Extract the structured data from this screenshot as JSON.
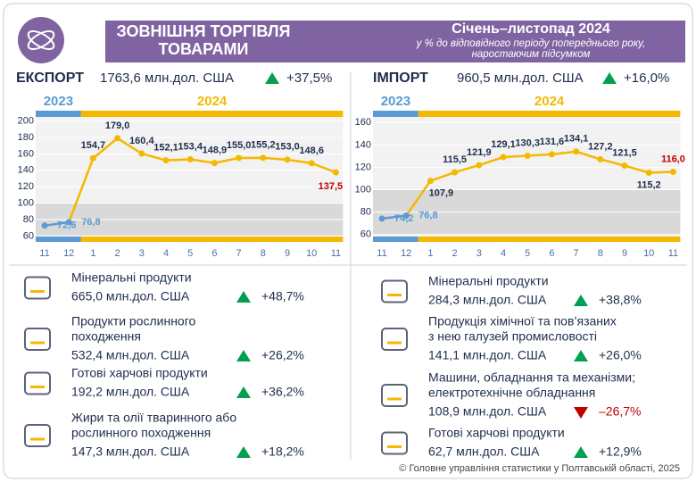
{
  "header": {
    "title_lines": [
      "ЗОВНІШНЯ ТОРГІВЛЯ",
      "ТОВАРАМИ"
    ],
    "period": "Січень–листопад 2024",
    "note_lines": [
      "у % до відповідного періоду попереднього року,",
      "наростаючим підсумком"
    ]
  },
  "panels": [
    {
      "label": "ЕКСПОРТ",
      "amount": "1763,6 млн.дол. США",
      "change": "+37,5%",
      "trend": "up",
      "products": [
        {
          "name_lines": [
            "Мінеральні продукти"
          ],
          "amount": "665,0 млн.дол. США",
          "change": "+48,7%",
          "trend": "up"
        },
        {
          "name_lines": [
            "Продукти рослинного",
            "походження"
          ],
          "amount": "532,4 млн.дол. США",
          "change": "+26,2%",
          "trend": "up"
        },
        {
          "name_lines": [
            "Готові харчові продукти"
          ],
          "amount": "192,2 млн.дол. США",
          "change": "+36,2%",
          "trend": "up"
        },
        {
          "name_lines": [
            "Жири та олії тваринного або",
            "рослинного походження"
          ],
          "amount": "147,3 млн.дол. США",
          "change": "+18,2%",
          "trend": "up"
        }
      ]
    },
    {
      "label": "ІМПОРТ",
      "amount": "960,5 млн.дол. США",
      "change": "+16,0%",
      "trend": "up",
      "products": [
        {
          "name_lines": [
            "Мінеральні продукти"
          ],
          "amount": "284,3 млн.дол. США",
          "change": "+38,8%",
          "trend": "up"
        },
        {
          "name_lines": [
            "Продукція хімічної та пов’язаних",
            "з нею галузей промисловості"
          ],
          "amount": "141,1 млн.дол. США",
          "change": "+26,0%",
          "trend": "up"
        },
        {
          "name_lines": [
            "Машини, обладнання та механізми;",
            "електротехнічне обладнання"
          ],
          "amount": "108,9 млн.дол. США",
          "change": "–26,7%",
          "trend": "down"
        },
        {
          "name_lines": [
            "Готові харчові продукти"
          ],
          "amount": "62,7 млн.дол. США",
          "change": "+12,9%",
          "trend": "up"
        }
      ]
    }
  ],
  "chart_data": [
    {
      "type": "line",
      "categories": [
        "11",
        "12",
        "1",
        "2",
        "3",
        "4",
        "5",
        "6",
        "7",
        "8",
        "9",
        "10",
        "11"
      ],
      "periods": [
        {
          "label": "2023",
          "color": "#5b9bd5",
          "categories": [
            "11",
            "12"
          ]
        },
        {
          "label": "2024",
          "color": "#f5b800",
          "categories": [
            "1",
            "2",
            "3",
            "4",
            "5",
            "6",
            "7",
            "8",
            "9",
            "10",
            "11"
          ]
        }
      ],
      "series": [
        {
          "values": [
            72.6,
            76.8,
            154.7,
            179.0,
            160.4,
            152.1,
            153.4,
            148.9,
            155.0,
            155.2,
            153.0,
            148.6,
            137.5
          ],
          "value_labels": [
            "72,6",
            "76,8",
            "154,7",
            "179,0",
            "160,4",
            "152,1",
            "153,4",
            "148,9",
            "155,0",
            "155,2",
            "153,0",
            "148,6",
            "137,5"
          ],
          "label_colors": [
            "#5b9bd5",
            "#5b9bd5",
            "#1f2d4d",
            "#1f2d4d",
            "#1f2d4d",
            "#1f2d4d",
            "#1f2d4d",
            "#1f2d4d",
            "#1f2d4d",
            "#1f2d4d",
            "#1f2d4d",
            "#1f2d4d",
            "#c00000"
          ]
        }
      ],
      "ylim": [
        55,
        205
      ],
      "yticks": [
        60,
        80,
        100,
        120,
        140,
        160,
        180,
        200
      ],
      "shaded_range": [
        60,
        100
      ]
    },
    {
      "type": "line",
      "categories": [
        "11",
        "12",
        "1",
        "2",
        "3",
        "4",
        "5",
        "6",
        "7",
        "8",
        "9",
        "10",
        "11"
      ],
      "periods": [
        {
          "label": "2023",
          "color": "#5b9bd5",
          "categories": [
            "11",
            "12"
          ]
        },
        {
          "label": "2024",
          "color": "#f5b800",
          "categories": [
            "1",
            "2",
            "3",
            "4",
            "5",
            "6",
            "7",
            "8",
            "9",
            "10",
            "11"
          ]
        }
      ],
      "series": [
        {
          "values": [
            74.2,
            76.8,
            107.9,
            115.5,
            121.9,
            129.1,
            130.3,
            131.6,
            134.1,
            127.2,
            121.5,
            115.2,
            116.0
          ],
          "value_labels": [
            "74,2",
            "76,8",
            "107,9",
            "115,5",
            "121,9",
            "129,1",
            "130,3",
            "131,6",
            "134,1",
            "127,2",
            "121,5",
            "115,2",
            "116,0"
          ],
          "label_colors": [
            "#5b9bd5",
            "#5b9bd5",
            "#1f2d4d",
            "#1f2d4d",
            "#1f2d4d",
            "#1f2d4d",
            "#1f2d4d",
            "#1f2d4d",
            "#1f2d4d",
            "#1f2d4d",
            "#1f2d4d",
            "#1f2d4d",
            "#c00000"
          ]
        }
      ],
      "ylim": [
        55,
        165
      ],
      "yticks": [
        60,
        80,
        100,
        120,
        140,
        160
      ],
      "shaded_range": [
        60,
        100
      ]
    }
  ],
  "footer": "© Головне управління статистики у Полтавській області, 2025"
}
